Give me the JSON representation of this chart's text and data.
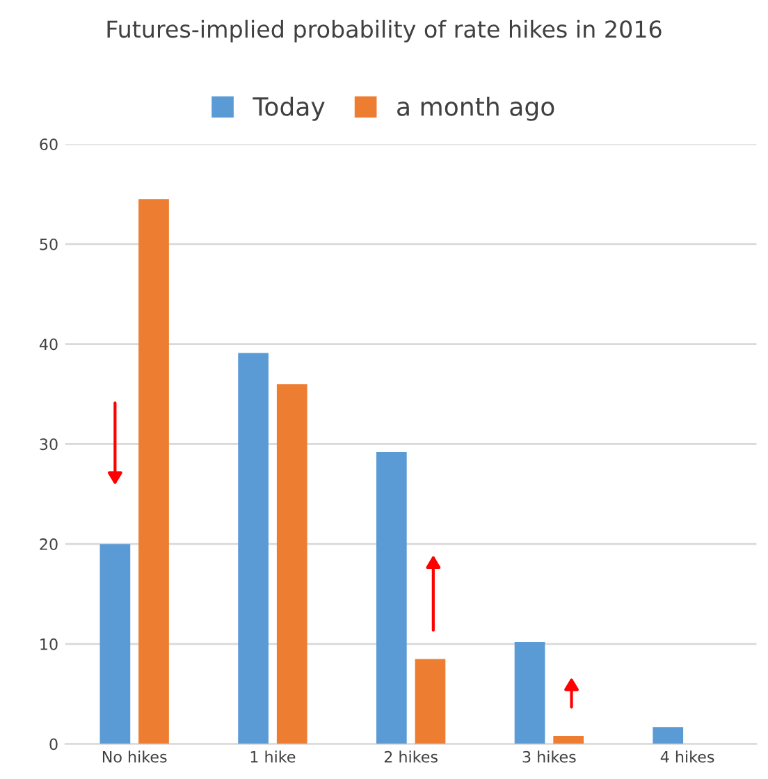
{
  "chart_data": {
    "type": "bar",
    "title": "Futures-implied probability of rate hikes in 2016",
    "categories": [
      "No hikes",
      "1 hike",
      "2 hikes",
      "3 hikes",
      "4 hikes"
    ],
    "series": [
      {
        "name": "Today",
        "color": "#5b9bd5",
        "values": [
          20,
          39.1,
          29.2,
          10.2,
          1.7
        ]
      },
      {
        "name": "a month ago",
        "color": "#ed7d31",
        "values": [
          54.5,
          36.0,
          8.5,
          0.8,
          null
        ]
      }
    ],
    "ylim": [
      0,
      60
    ],
    "yticks": [
      0,
      10,
      20,
      30,
      40,
      50,
      60
    ],
    "grid": "y",
    "legend": "top"
  }
}
